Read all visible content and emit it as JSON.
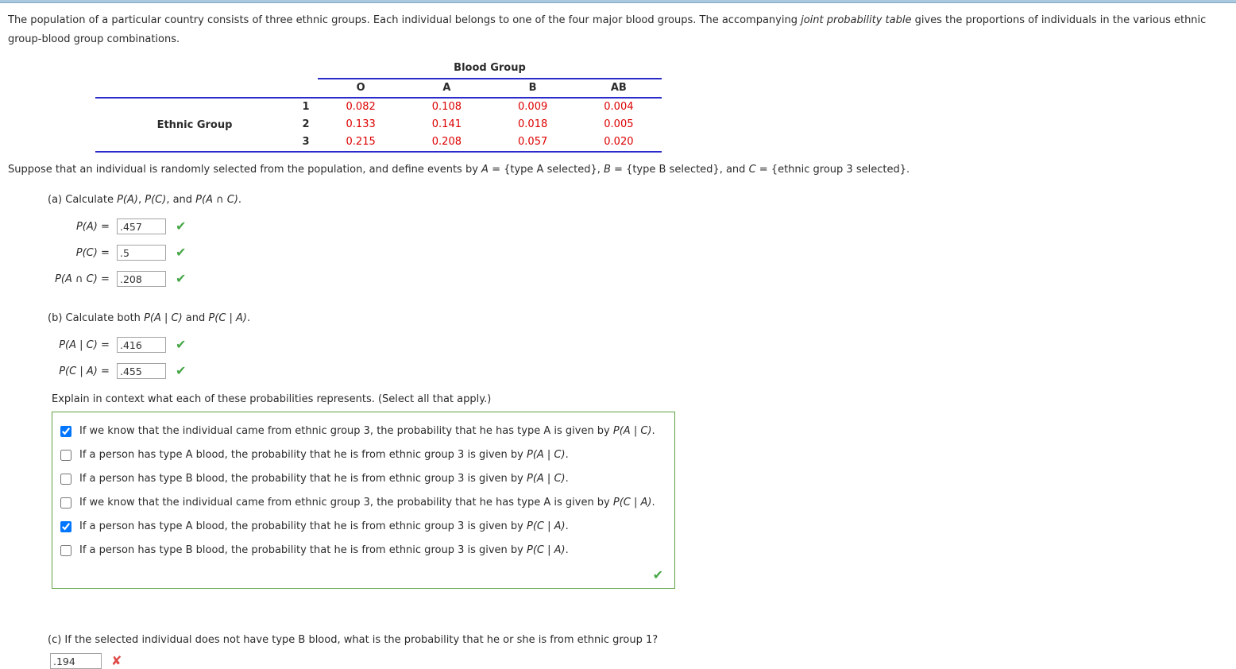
{
  "colors": {
    "table_line": "#2b2bcc",
    "table_value": "#dd0000",
    "correct_green": "#47a647",
    "incorrect_red": "#e04b4b",
    "options_box_border": "#5ea345",
    "top_bar": "#aac8de"
  },
  "icons": {
    "correct": "✔",
    "incorrect": "✘"
  },
  "intro": [
    {
      "t": "The population of a particular country consists of three ethnic groups. Each individual belongs to one of the four major blood groups. The accompanying "
    },
    {
      "t": "joint probability table",
      "i": true
    },
    {
      "t": " gives the proportions of individuals in the various ethnic group-blood group combinations."
    }
  ],
  "table": {
    "title": "Blood Group",
    "col_headers": [
      "O",
      "A",
      "B",
      "AB"
    ],
    "row_label": "Ethnic Group",
    "rows": [
      {
        "num": "1",
        "values": [
          "0.082",
          "0.108",
          "0.009",
          "0.004"
        ]
      },
      {
        "num": "2",
        "values": [
          "0.133",
          "0.141",
          "0.018",
          "0.005"
        ]
      },
      {
        "num": "3",
        "values": [
          "0.215",
          "0.208",
          "0.057",
          "0.020"
        ]
      }
    ]
  },
  "suppose": [
    {
      "t": "Suppose that an individual is randomly selected from the population, and define events by "
    },
    {
      "t": "A",
      "i": true
    },
    {
      "t": " = {type A selected}, "
    },
    {
      "t": "B",
      "i": true
    },
    {
      "t": " = {type B selected}, and "
    },
    {
      "t": "C",
      "i": true
    },
    {
      "t": " = {ethnic group 3 selected}."
    }
  ],
  "part_a": {
    "heading": [
      {
        "t": "(a) Calculate "
      },
      {
        "t": "P(A)",
        "i": true
      },
      {
        "t": ", "
      },
      {
        "t": "P(C)",
        "i": true
      },
      {
        "t": ", and "
      },
      {
        "t": "P(A ∩ C)",
        "i": true
      },
      {
        "t": "."
      }
    ],
    "answers": [
      {
        "label": [
          {
            "t": "P(A)",
            "i": true
          },
          {
            "t": " = "
          }
        ],
        "value": ".457",
        "status": "correct"
      },
      {
        "label": [
          {
            "t": "P(C)",
            "i": true
          },
          {
            "t": " = "
          }
        ],
        "value": ".5",
        "status": "correct"
      },
      {
        "label": [
          {
            "t": "P(A ∩ C)",
            "i": true
          },
          {
            "t": " = "
          }
        ],
        "value": ".208",
        "status": "correct"
      }
    ]
  },
  "part_b": {
    "heading": [
      {
        "t": "(b) Calculate both "
      },
      {
        "t": "P(A | C)",
        "i": true
      },
      {
        "t": " and "
      },
      {
        "t": "P(C | A)",
        "i": true
      },
      {
        "t": "."
      }
    ],
    "answers": [
      {
        "label": [
          {
            "t": "P(A | C)",
            "i": true
          },
          {
            "t": " = "
          }
        ],
        "value": ".416",
        "status": "correct"
      },
      {
        "label": [
          {
            "t": "P(C | A)",
            "i": true
          },
          {
            "t": " = "
          }
        ],
        "value": ".455",
        "status": "correct"
      }
    ],
    "explain_prompt": "Explain in context what each of these probabilities represents. (Select all that apply.)",
    "options": [
      {
        "checked": true,
        "text": [
          {
            "t": "If we know that the individual came from ethnic group 3, the probability that he has type A is given by "
          },
          {
            "t": "P(A | C)",
            "i": true
          },
          {
            "t": "."
          }
        ]
      },
      {
        "checked": false,
        "text": [
          {
            "t": "If a person has type A blood, the probability that he is from ethnic group 3 is given by "
          },
          {
            "t": "P(A | C)",
            "i": true
          },
          {
            "t": "."
          }
        ]
      },
      {
        "checked": false,
        "text": [
          {
            "t": "If a person has type B blood, the probability that he is from ethnic group 3 is given by "
          },
          {
            "t": "P(A | C)",
            "i": true
          },
          {
            "t": "."
          }
        ]
      },
      {
        "checked": false,
        "text": [
          {
            "t": "If we know that the individual came from ethnic group 3, the probability that he has type A is given by "
          },
          {
            "t": "P(C | A)",
            "i": true
          },
          {
            "t": "."
          }
        ]
      },
      {
        "checked": true,
        "text": [
          {
            "t": "If a person has type A blood, the probability that he is from ethnic group 3 is given by "
          },
          {
            "t": "P(C | A)",
            "i": true
          },
          {
            "t": "."
          }
        ]
      },
      {
        "checked": false,
        "text": [
          {
            "t": "If a person has type B blood, the probability that he is from ethnic group 3 is given by "
          },
          {
            "t": "P(C | A)",
            "i": true
          },
          {
            "t": "."
          }
        ]
      }
    ],
    "box_status": "correct"
  },
  "part_c": {
    "question": "(c) If the selected individual does not have type B blood, what is the probability that he or she is from ethnic group 1?",
    "value": ".194",
    "status": "incorrect"
  }
}
